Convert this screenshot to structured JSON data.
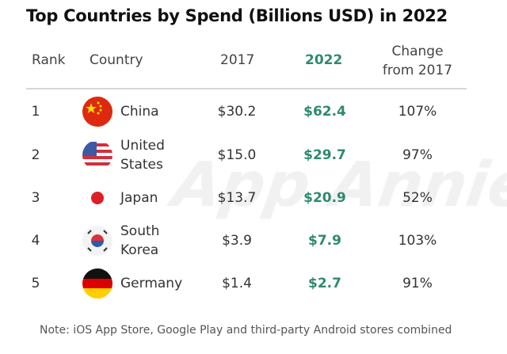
{
  "title": "Top Countries by Spend (Billions USD) in 2022",
  "watermark": "App Annie",
  "headers": {
    "rank": "Rank",
    "country": "Country",
    "y2017": "2017",
    "y2022": "2022",
    "change_line1": "Change",
    "change_line2": "from 2017"
  },
  "rows": [
    {
      "rank": "1",
      "country": "China",
      "country_l1": "China",
      "country_l2": "",
      "flag": "china-flag",
      "y2017": "$30.2",
      "y2022": "$62.4",
      "change": "107%"
    },
    {
      "rank": "2",
      "country": "United States",
      "country_l1": "United",
      "country_l2": "States",
      "flag": "us-flag",
      "y2017": "$15.0",
      "y2022": "$29.7",
      "change": "97%"
    },
    {
      "rank": "3",
      "country": "Japan",
      "country_l1": "Japan",
      "country_l2": "",
      "flag": "japan-flag",
      "y2017": "$13.7",
      "y2022": "$20.9",
      "change": "52%"
    },
    {
      "rank": "4",
      "country": "South Korea",
      "country_l1": "South",
      "country_l2": "Korea",
      "flag": "south-korea-flag",
      "y2017": "$3.9",
      "y2022": "$7.9",
      "change": "103%"
    },
    {
      "rank": "5",
      "country": "Germany",
      "country_l1": "Germany",
      "country_l2": "",
      "flag": "germany-flag",
      "y2017": "$1.4",
      "y2022": "$2.7",
      "change": "91%"
    }
  ],
  "note": "Note: iOS App Store, Google Play and third-party Android stores combined",
  "colors": {
    "accent_green": "#2e8b6a",
    "rule": "#d6d6d6"
  },
  "chart_data": {
    "type": "table",
    "title": "Top Countries by Spend (Billions USD) in 2022",
    "columns": [
      "Rank",
      "Country",
      "2017",
      "2022",
      "Change from 2017"
    ],
    "rows": [
      [
        1,
        "China",
        30.2,
        62.4,
        "107%"
      ],
      [
        2,
        "United States",
        15.0,
        29.7,
        "97%"
      ],
      [
        3,
        "Japan",
        13.7,
        20.9,
        "52%"
      ],
      [
        4,
        "South Korea",
        3.9,
        7.9,
        "103%"
      ],
      [
        5,
        "Germany",
        1.4,
        2.7,
        "91%"
      ]
    ],
    "highlight_column": "2022"
  }
}
